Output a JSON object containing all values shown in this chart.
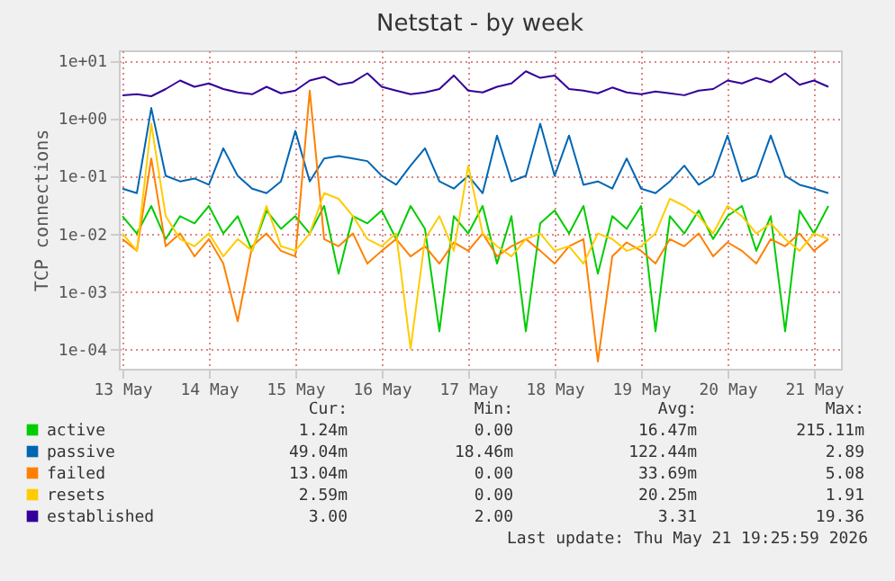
{
  "chart_data": {
    "type": "line",
    "title": "Netstat - by week",
    "ylabel": "TCP connections",
    "log": true,
    "grid": true,
    "legend": "bottom",
    "x": [
      "2026-05-13T00:00",
      "2026-05-13T04:00",
      "2026-05-13T08:00",
      "2026-05-13T12:00",
      "2026-05-13T16:00",
      "2026-05-13T20:00",
      "2026-05-14T00:00",
      "2026-05-14T04:00",
      "2026-05-14T08:00",
      "2026-05-14T12:00",
      "2026-05-14T16:00",
      "2026-05-14T20:00",
      "2026-05-15T00:00",
      "2026-05-15T04:00",
      "2026-05-15T08:00",
      "2026-05-15T12:00",
      "2026-05-15T16:00",
      "2026-05-15T20:00",
      "2026-05-16T00:00",
      "2026-05-16T04:00",
      "2026-05-16T08:00",
      "2026-05-16T12:00",
      "2026-05-16T16:00",
      "2026-05-16T20:00",
      "2026-05-17T00:00",
      "2026-05-17T04:00",
      "2026-05-17T08:00",
      "2026-05-17T12:00",
      "2026-05-17T16:00",
      "2026-05-17T20:00",
      "2026-05-18T00:00",
      "2026-05-18T04:00",
      "2026-05-18T08:00",
      "2026-05-18T12:00",
      "2026-05-18T16:00",
      "2026-05-18T20:00",
      "2026-05-19T00:00",
      "2026-05-19T04:00",
      "2026-05-19T08:00",
      "2026-05-19T12:00",
      "2026-05-19T16:00",
      "2026-05-19T20:00",
      "2026-05-20T00:00",
      "2026-05-20T04:00",
      "2026-05-20T08:00",
      "2026-05-20T12:00",
      "2026-05-20T16:00",
      "2026-05-20T20:00",
      "2026-05-21T00:00",
      "2026-05-21T04:00"
    ],
    "xlim": [
      "2026-05-12T23:00",
      "2026-05-21T07:30"
    ],
    "xticks": [
      {
        "value": "2026-05-13",
        "label": "13 May"
      },
      {
        "value": "2026-05-14",
        "label": "14 May"
      },
      {
        "value": "2026-05-15",
        "label": "15 May"
      },
      {
        "value": "2026-05-16",
        "label": "16 May"
      },
      {
        "value": "2026-05-17",
        "label": "17 May"
      },
      {
        "value": "2026-05-18",
        "label": "18 May"
      },
      {
        "value": "2026-05-19",
        "label": "19 May"
      },
      {
        "value": "2026-05-20",
        "label": "20 May"
      },
      {
        "value": "2026-05-21",
        "label": "21 May"
      }
    ],
    "ylim": [
      4.5e-05,
      15
    ],
    "yticks": [
      {
        "value": 0.0001,
        "label": "1e-04"
      },
      {
        "value": 0.001,
        "label": "1e-03"
      },
      {
        "value": 0.01,
        "label": "1e-02"
      },
      {
        "value": 0.1,
        "label": "1e-01"
      },
      {
        "value": 1,
        "label": "1e+00"
      },
      {
        "value": 10,
        "label": "1e+01"
      }
    ],
    "series": [
      {
        "name": "active",
        "color": "#00cc00",
        "values": [
          0.02,
          0.01,
          0.03,
          0.008,
          0.02,
          0.015,
          0.03,
          0.01,
          0.02,
          0.005,
          0.025,
          0.012,
          0.02,
          0.01,
          0.03,
          0.002,
          0.02,
          0.015,
          0.025,
          0.008,
          0.03,
          0.012,
          0.0002,
          0.02,
          0.01,
          0.03,
          0.003,
          0.02,
          0.0002,
          0.015,
          0.025,
          0.01,
          0.03,
          0.002,
          0.02,
          0.012,
          0.03,
          0.0002,
          0.02,
          0.01,
          0.025,
          0.008,
          0.02,
          0.03,
          0.005,
          0.02,
          0.0002,
          0.025,
          0.01,
          0.03
        ]
      },
      {
        "name": "passive",
        "color": "#0066b3",
        "values": [
          0.06,
          0.05,
          1.5,
          0.1,
          0.08,
          0.09,
          0.07,
          0.3,
          0.1,
          0.06,
          0.05,
          0.08,
          0.6,
          0.08,
          0.2,
          0.22,
          0.2,
          0.18,
          0.1,
          0.07,
          0.15,
          0.3,
          0.08,
          0.06,
          0.1,
          0.05,
          0.5,
          0.08,
          0.1,
          0.8,
          0.1,
          0.5,
          0.07,
          0.08,
          0.06,
          0.2,
          0.06,
          0.05,
          0.08,
          0.15,
          0.07,
          0.1,
          0.5,
          0.08,
          0.1,
          0.5,
          0.1,
          0.07,
          0.06,
          0.05
        ]
      },
      {
        "name": "failed",
        "color": "#ff8000",
        "values": [
          0.008,
          0.005,
          0.2,
          0.006,
          0.01,
          0.004,
          0.008,
          0.003,
          0.0003,
          0.006,
          0.01,
          0.005,
          0.004,
          3.0,
          0.008,
          0.006,
          0.01,
          0.003,
          0.005,
          0.008,
          0.004,
          0.006,
          0.003,
          0.007,
          0.005,
          0.01,
          0.004,
          0.006,
          0.008,
          0.005,
          0.003,
          0.006,
          0.008,
          6e-05,
          0.004,
          0.007,
          0.005,
          0.003,
          0.008,
          0.006,
          0.01,
          0.004,
          0.007,
          0.005,
          0.003,
          0.008,
          0.006,
          0.01,
          0.005,
          0.008
        ]
      },
      {
        "name": "resets",
        "color": "#ffcc00",
        "values": [
          0.01,
          0.005,
          0.8,
          0.02,
          0.008,
          0.006,
          0.01,
          0.004,
          0.008,
          0.005,
          0.03,
          0.006,
          0.005,
          0.01,
          0.05,
          0.04,
          0.02,
          0.008,
          0.006,
          0.01,
          0.0001,
          0.008,
          0.02,
          0.005,
          0.15,
          0.01,
          0.006,
          0.004,
          0.008,
          0.01,
          0.005,
          0.006,
          0.003,
          0.01,
          0.008,
          0.005,
          0.006,
          0.01,
          0.04,
          0.03,
          0.02,
          0.01,
          0.03,
          0.02,
          0.01,
          0.015,
          0.008,
          0.005,
          0.01,
          0.008
        ]
      },
      {
        "name": "established",
        "color": "#330099",
        "values": [
          2.5,
          2.6,
          2.4,
          3.2,
          4.5,
          3.5,
          4.0,
          3.2,
          2.8,
          2.6,
          3.5,
          2.7,
          3.0,
          4.5,
          5.2,
          3.8,
          4.2,
          6.0,
          3.5,
          3.0,
          2.6,
          2.8,
          3.2,
          5.5,
          3.0,
          2.8,
          3.5,
          4.0,
          6.5,
          5.0,
          5.5,
          3.2,
          3.0,
          2.7,
          3.4,
          2.8,
          2.6,
          2.9,
          2.7,
          2.5,
          3.0,
          3.2,
          4.5,
          4.0,
          5.0,
          4.2,
          6.0,
          3.8,
          4.5,
          3.5
        ]
      }
    ],
    "annotations": [
      "Cur:",
      "Min:",
      "Avg:",
      "Max:",
      "1.24m",
      "0.00",
      "16.47m",
      "215.11m",
      "49.04m",
      "18.46m",
      "122.44m",
      "2.89",
      "13.04m",
      "0.00",
      "33.69m",
      "5.08",
      "2.59m",
      "0.00",
      "20.25m",
      "1.91",
      "3.00",
      "2.00",
      "3.31",
      "19.36",
      "Last update: Thu May 21 19:25:59 2026"
    ]
  }
}
